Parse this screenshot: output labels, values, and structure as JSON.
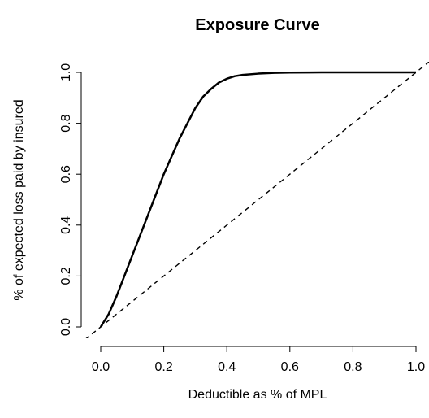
{
  "chart_data": {
    "type": "line",
    "title": "Exposure Curve",
    "xlabel": "Deductible as % of MPL",
    "ylabel": "% of expected loss paid by insured",
    "xlim": [
      0,
      1
    ],
    "ylim": [
      0,
      1
    ],
    "x_ticks": [
      "0.0",
      "0.2",
      "0.4",
      "0.6",
      "0.8",
      "1.0"
    ],
    "y_ticks": [
      "0.0",
      "0.2",
      "0.4",
      "0.6",
      "0.8",
      "1.0"
    ],
    "grid": false,
    "series": [
      {
        "style": "solid",
        "x": [
          0.0,
          0.025,
          0.05,
          0.075,
          0.1,
          0.125,
          0.15,
          0.175,
          0.2,
          0.225,
          0.25,
          0.275,
          0.3,
          0.325,
          0.35,
          0.375,
          0.4,
          0.425,
          0.45,
          0.5,
          0.55,
          0.6,
          0.7,
          0.8,
          0.9,
          1.0
        ],
        "y": [
          0.0,
          0.05,
          0.12,
          0.2,
          0.28,
          0.36,
          0.44,
          0.52,
          0.6,
          0.67,
          0.74,
          0.8,
          0.86,
          0.905,
          0.935,
          0.96,
          0.975,
          0.985,
          0.99,
          0.995,
          0.998,
          0.999,
          1.0,
          1.0,
          1.0,
          1.0
        ]
      },
      {
        "style": "dashed",
        "x": [
          -0.05,
          1.05
        ],
        "y": [
          -0.05,
          1.05
        ]
      }
    ]
  }
}
